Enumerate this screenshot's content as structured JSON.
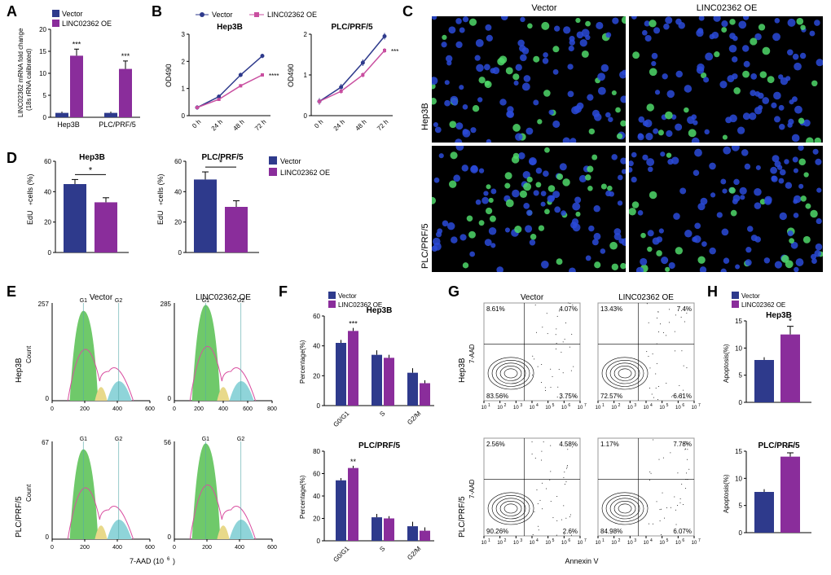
{
  "colors": {
    "vector": "#2e3a8c",
    "oe": "#8a2d9b",
    "vector_line": "#2e3a8c",
    "oe_line": "#c94fa0",
    "axis": "#000000",
    "grid": "#e0e0e0",
    "bg": "#ffffff",
    "cell_g1": "#6fc96a",
    "cell_s": "#e8d98a",
    "cell_g2": "#8fd4d9"
  },
  "labels": {
    "vector": "Vector",
    "oe": "LINC02362 OE",
    "hep3b": "Hep3B",
    "plc": "PLC/PRF/5"
  },
  "panel_A": {
    "label": "A",
    "ylabel": "LINC02362 mRNA fold change\n(18s rRNA calibrated)",
    "groups": [
      "Hep3B",
      "PLC/PRF/5"
    ],
    "vector": [
      1,
      1
    ],
    "oe": [
      14,
      11
    ],
    "vector_err": [
      0.3,
      0.3
    ],
    "oe_err": [
      1.5,
      1.8
    ],
    "sig": [
      "***",
      "***"
    ],
    "ylim": [
      0,
      20
    ],
    "yticks": [
      0,
      5,
      10,
      15,
      20
    ]
  },
  "panel_B": {
    "label": "B",
    "charts": [
      {
        "title": "Hep3B",
        "x": [
          "0 h",
          "24 h",
          "48 h",
          "72 h"
        ],
        "vector": [
          0.3,
          0.7,
          1.5,
          2.2
        ],
        "oe": [
          0.3,
          0.6,
          1.1,
          1.5
        ],
        "ylim": [
          0,
          3
        ],
        "yticks": [
          0,
          1,
          2,
          3
        ],
        "sig": "****"
      },
      {
        "title": "PLC/PRF/5",
        "x": [
          "0 h",
          "24 h",
          "48 h",
          "72 h"
        ],
        "vector": [
          0.35,
          0.7,
          1.3,
          1.95
        ],
        "oe": [
          0.35,
          0.6,
          1.0,
          1.6
        ],
        "ylim": [
          0,
          2
        ],
        "yticks": [
          0,
          1,
          2
        ],
        "sig": "***"
      }
    ],
    "ylabel": "OD490"
  },
  "panel_C": {
    "label": "C",
    "cols": [
      "Vector",
      "LINC02362 OE"
    ],
    "rows": [
      "Hep3B",
      "PLC/PRF/5"
    ]
  },
  "panel_D": {
    "label": "D",
    "ylabel": "EdU+ cells (%)",
    "charts": [
      {
        "title": "Hep3B",
        "vector": 45,
        "oe": 33,
        "ve": 3,
        "oee": 3,
        "sig": "*",
        "ylim": [
          0,
          60
        ]
      },
      {
        "title": "PLC/PRF/5",
        "vector": 48,
        "oe": 30,
        "ve": 5,
        "oee": 4,
        "sig": "*",
        "ylim": [
          0,
          60
        ]
      }
    ],
    "yticks": [
      0,
      20,
      40,
      60
    ]
  },
  "panel_E": {
    "label": "E",
    "xlabel": "7-AAD (10^6)",
    "ylabel": "Count",
    "plots": [
      {
        "title": "Vector",
        "row": "Hep3B",
        "ymax": 257,
        "xticks": [
          0,
          200,
          400,
          600
        ]
      },
      {
        "title": "LINC02362 OE",
        "row": "Hep3B",
        "ymax": 285,
        "xticks": [
          0,
          200,
          400,
          600,
          800
        ]
      },
      {
        "title": "Vector",
        "row": "PLC/PRF/5",
        "ymax": 67,
        "xticks": [
          0,
          200,
          400,
          600
        ]
      },
      {
        "title": "LINC02362 OE",
        "row": "PLC/PRF/5",
        "ymax": 56,
        "xticks": [
          0,
          200,
          400,
          600
        ]
      }
    ]
  },
  "panel_F": {
    "label": "F",
    "ylabel": "Percentage(%)",
    "charts": [
      {
        "title": "Hep3B",
        "cats": [
          "G0/G1",
          "S",
          "G2/M"
        ],
        "vector": [
          42,
          34,
          22
        ],
        "oe": [
          50,
          32,
          15
        ],
        "ve": [
          2,
          3,
          3
        ],
        "oee": [
          2,
          2,
          2
        ],
        "sig": [
          "***",
          "",
          ""
        ],
        "ylim": [
          0,
          60
        ],
        "yticks": [
          0,
          20,
          40,
          60
        ]
      },
      {
        "title": "PLC/PRF/5",
        "cats": [
          "G0/G1",
          "S",
          "G2/M"
        ],
        "vector": [
          54,
          21,
          13
        ],
        "oe": [
          65,
          20,
          9
        ],
        "ve": [
          2,
          3,
          4
        ],
        "oee": [
          2,
          2,
          3
        ],
        "sig": [
          "**",
          "",
          ""
        ],
        "ylim": [
          0,
          80
        ],
        "yticks": [
          0,
          20,
          40,
          60,
          80
        ]
      }
    ]
  },
  "panel_G": {
    "label": "G",
    "xlabel": "Annexin V",
    "ylabel": "7-AAD",
    "ticks": [
      "10^1",
      "10^2",
      "10^3",
      "10^4",
      "10^5",
      "10^6",
      "10^7"
    ],
    "plots": [
      {
        "row": "Hep3B",
        "title": "Vector",
        "q": [
          8.61,
          4.07,
          83.56,
          3.75
        ]
      },
      {
        "row": "Hep3B",
        "title": "LINC02362 OE",
        "q": [
          13.43,
          7.4,
          72.57,
          6.61
        ]
      },
      {
        "row": "PLC/PRF/5",
        "title": "Vector",
        "q": [
          2.56,
          4.58,
          90.26,
          2.6
        ]
      },
      {
        "row": "PLC/PRF/5",
        "title": "LINC02362 OE",
        "q": [
          1.17,
          7.78,
          84.98,
          6.07
        ]
      }
    ]
  },
  "panel_H": {
    "label": "H",
    "ylabel": "Apoptosis(%)",
    "charts": [
      {
        "title": "Hep3B",
        "vector": 7.8,
        "oe": 12.5,
        "ve": 0.5,
        "oee": 1.5,
        "sig": "*",
        "ylim": [
          0,
          15
        ],
        "yticks": [
          0,
          5,
          10,
          15
        ]
      },
      {
        "title": "PLC/PRF/5",
        "vector": 7.5,
        "oe": 14,
        "ve": 0.5,
        "oee": 0.7,
        "sig": "**",
        "ylim": [
          0,
          15
        ],
        "yticks": [
          0,
          5,
          10,
          15
        ]
      }
    ]
  }
}
